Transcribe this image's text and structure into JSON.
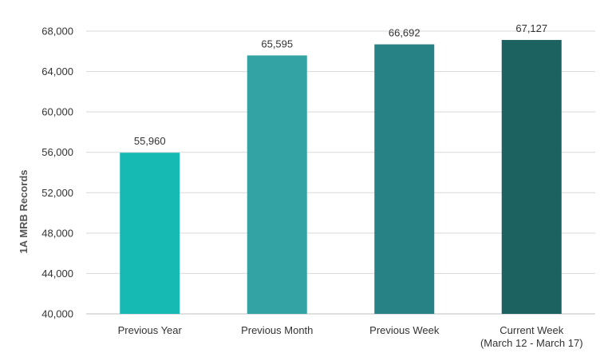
{
  "chart_data": {
    "type": "bar",
    "title": "",
    "xlabel": "",
    "ylabel": "1A MRB Records",
    "ylim": [
      40000,
      68000
    ],
    "yticks": [
      40000,
      44000,
      48000,
      52000,
      56000,
      60000,
      64000,
      68000
    ],
    "ytick_labels": [
      "40,000",
      "44,000",
      "48,000",
      "52,000",
      "56,000",
      "60,000",
      "64,000",
      "68,000"
    ],
    "grid": true,
    "categories": [
      {
        "lines": [
          "Previous Year"
        ]
      },
      {
        "lines": [
          "Previous Month"
        ]
      },
      {
        "lines": [
          "Previous Week"
        ]
      },
      {
        "lines": [
          "Current Week",
          "(March 12 - March 17)"
        ]
      }
    ],
    "values": [
      55960,
      65595,
      66692,
      67127
    ],
    "value_labels": [
      "55,960",
      "65,595",
      "66,692",
      "67,127"
    ],
    "colors": [
      "#17bab3",
      "#33a3a4",
      "#278286",
      "#1b6260"
    ]
  }
}
